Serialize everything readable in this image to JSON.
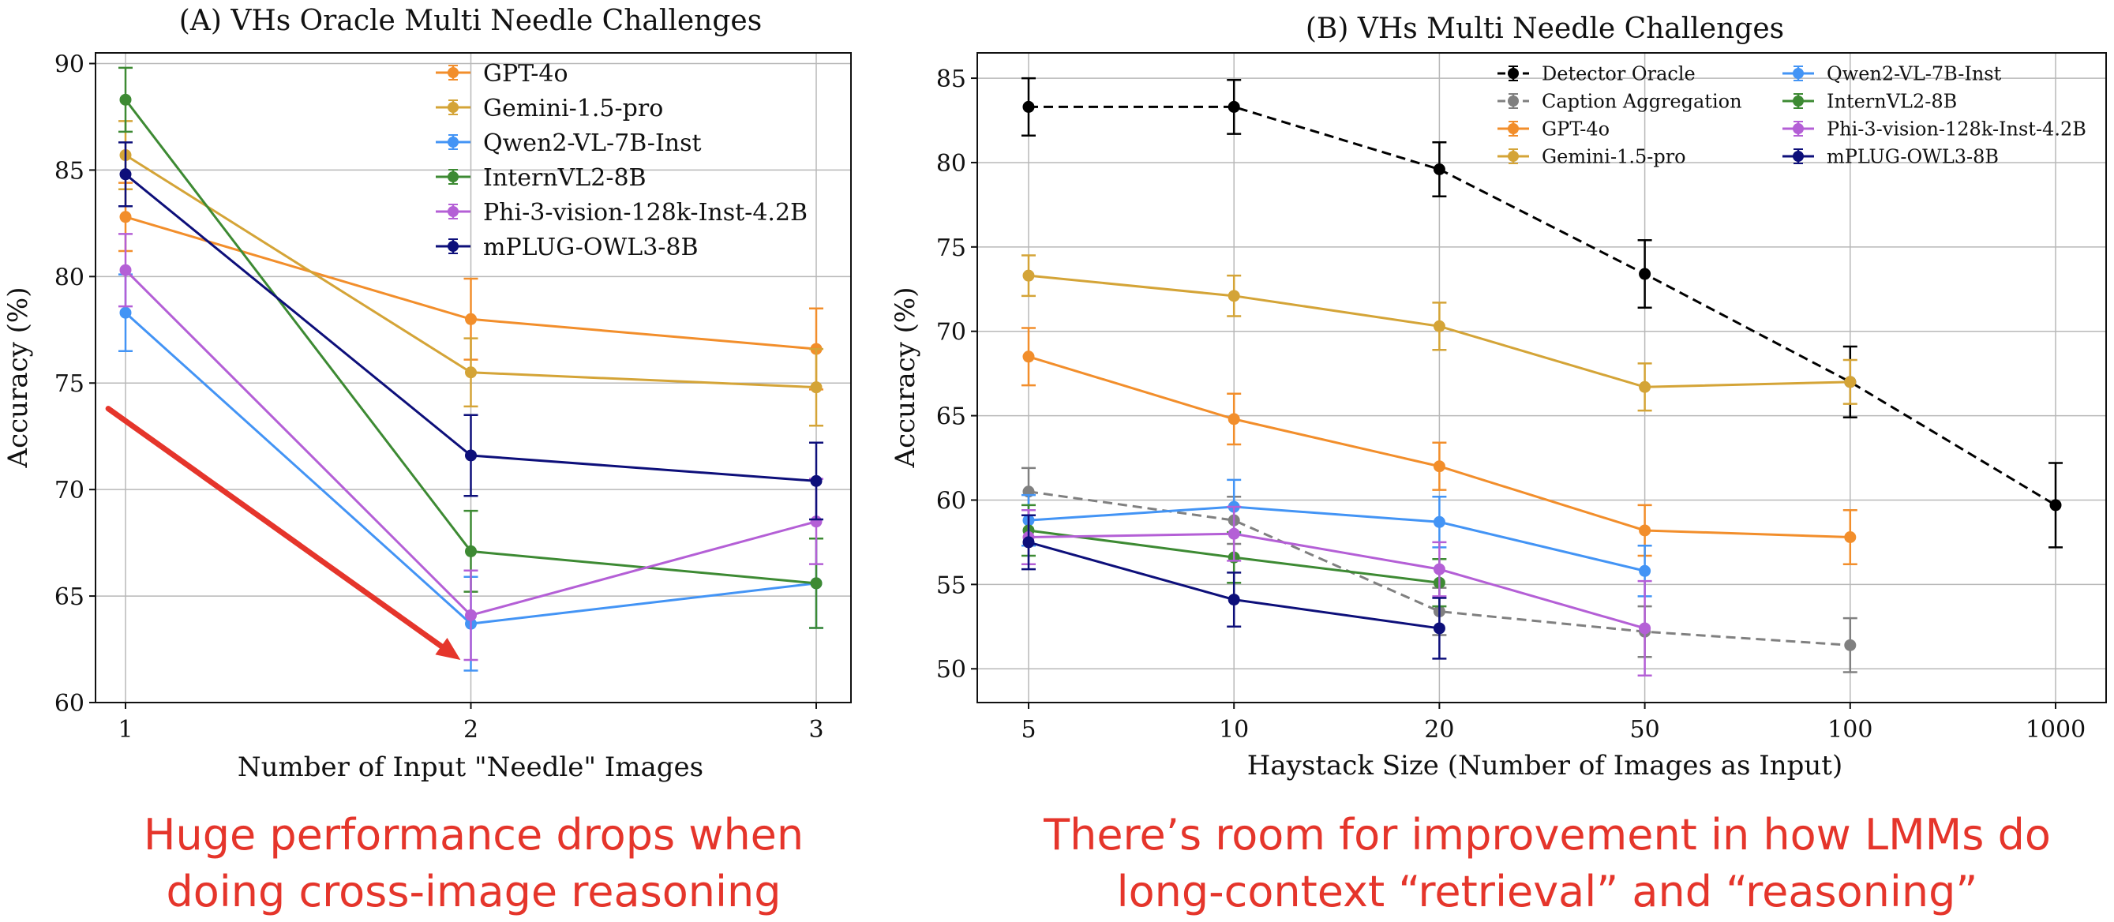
{
  "chart_data": [
    {
      "type": "line",
      "title": "(A) VHs Oracle Multi Needle Challenges",
      "xlabel": "Number of Input \"Needle\" Images",
      "ylabel": "Accuracy (%)",
      "x": [
        1,
        2,
        3
      ],
      "xticks": [
        "1",
        "2",
        "3"
      ],
      "ylim": [
        60,
        90.5
      ],
      "yticks": [
        "60",
        "65",
        "70",
        "75",
        "80",
        "85",
        "90"
      ],
      "grid": true,
      "legend": "top-right",
      "series": [
        {
          "name": "GPT-4o",
          "color": "#f28e2b",
          "values": [
            82.8,
            78.0,
            76.6
          ],
          "err": [
            1.6,
            1.9,
            1.9
          ]
        },
        {
          "name": "Gemini-1.5-pro",
          "color": "#d4a437",
          "values": [
            85.7,
            75.5,
            74.8
          ],
          "err": [
            1.6,
            1.6,
            1.8
          ]
        },
        {
          "name": "Qwen2-VL-7B-Inst",
          "color": "#4394f5",
          "values": [
            78.3,
            63.7,
            65.6
          ],
          "err": [
            1.8,
            2.2,
            2.1
          ]
        },
        {
          "name": "InternVL2-8B",
          "color": "#3d8a33",
          "values": [
            88.3,
            67.1,
            65.6
          ],
          "err": [
            1.5,
            1.9,
            2.1
          ]
        },
        {
          "name": "Phi-3-vision-128k-Inst-4.2B",
          "color": "#b45fd6",
          "values": [
            80.3,
            64.1,
            68.5
          ],
          "err": [
            1.7,
            2.1,
            2.0
          ]
        },
        {
          "name": "mPLUG-OWL3-8B",
          "color": "#0d0f7a",
          "values": [
            84.8,
            71.6,
            70.4
          ],
          "err": [
            1.5,
            1.9,
            1.8
          ]
        }
      ],
      "annotation": {
        "type": "arrow",
        "color": "#e5352b",
        "from": [
          0.95,
          73.8
        ],
        "to": [
          1.97,
          62.0
        ]
      }
    },
    {
      "type": "line",
      "title": "(B) VHs Multi Needle Challenges",
      "xlabel": "Haystack Size (Number of Images as Input)",
      "ylabel": "Accuracy (%)",
      "x": [
        5,
        10,
        20,
        50,
        100,
        1000
      ],
      "xticks": [
        "5",
        "10",
        "20",
        "50",
        "100",
        "1000"
      ],
      "ylim": [
        48,
        86.5
      ],
      "yticks": [
        "50",
        "55",
        "60",
        "65",
        "70",
        "75",
        "80",
        "85"
      ],
      "grid": true,
      "legend": "top-right",
      "series": [
        {
          "name": "Detector Oracle",
          "color": "#000000",
          "dashed": true,
          "x": [
            5,
            10,
            20,
            50,
            100,
            1000
          ],
          "values": [
            83.3,
            83.3,
            79.6,
            73.4,
            67.0,
            59.7
          ],
          "err": [
            1.7,
            1.6,
            1.6,
            2.0,
            2.1,
            2.5
          ]
        },
        {
          "name": "Caption Aggregation",
          "color": "#808080",
          "dashed": true,
          "x": [
            5,
            10,
            20,
            50,
            100
          ],
          "values": [
            60.5,
            58.8,
            53.4,
            52.2,
            51.4
          ],
          "err": [
            1.4,
            1.4,
            1.4,
            1.5,
            1.6
          ]
        },
        {
          "name": "GPT-4o",
          "color": "#f28e2b",
          "x": [
            5,
            10,
            20,
            50,
            100
          ],
          "values": [
            68.5,
            64.8,
            62.0,
            58.2,
            57.8
          ],
          "err": [
            1.7,
            1.5,
            1.4,
            1.5,
            1.6
          ]
        },
        {
          "name": "Gemini-1.5-pro",
          "color": "#d4a437",
          "x": [
            5,
            10,
            20,
            50,
            100
          ],
          "values": [
            73.3,
            72.1,
            70.3,
            66.7,
            67.0
          ],
          "err": [
            1.2,
            1.2,
            1.4,
            1.4,
            1.3
          ]
        },
        {
          "name": "Qwen2-VL-7B-Inst",
          "color": "#4394f5",
          "x": [
            5,
            10,
            20,
            50
          ],
          "values": [
            58.8,
            59.6,
            58.7,
            55.8
          ],
          "err": [
            1.5,
            1.6,
            1.5,
            1.5
          ]
        },
        {
          "name": "InternVL2-8B",
          "color": "#3d8a33",
          "x": [
            5,
            10,
            20
          ],
          "values": [
            58.2,
            56.6,
            55.1
          ],
          "err": [
            1.5,
            1.5,
            1.4
          ]
        },
        {
          "name": "Phi-3-vision-128k-Inst-4.2B",
          "color": "#b45fd6",
          "x": [
            5,
            10,
            20,
            50
          ],
          "values": [
            57.8,
            58.0,
            55.9,
            52.4
          ],
          "err": [
            1.6,
            1.6,
            1.6,
            2.8
          ]
        },
        {
          "name": "mPLUG-OWL3-8B",
          "color": "#0d0f7a",
          "x": [
            5,
            10,
            20
          ],
          "values": [
            57.5,
            54.1,
            52.4
          ],
          "err": [
            1.6,
            1.6,
            1.8
          ]
        }
      ]
    }
  ],
  "captions": {
    "left": [
      "Huge performance drops when",
      "doing cross-image reasoning"
    ],
    "right": [
      "There’s room for improvement in how LMMs do",
      "long-context “retrieval” and “reasoning”"
    ]
  }
}
